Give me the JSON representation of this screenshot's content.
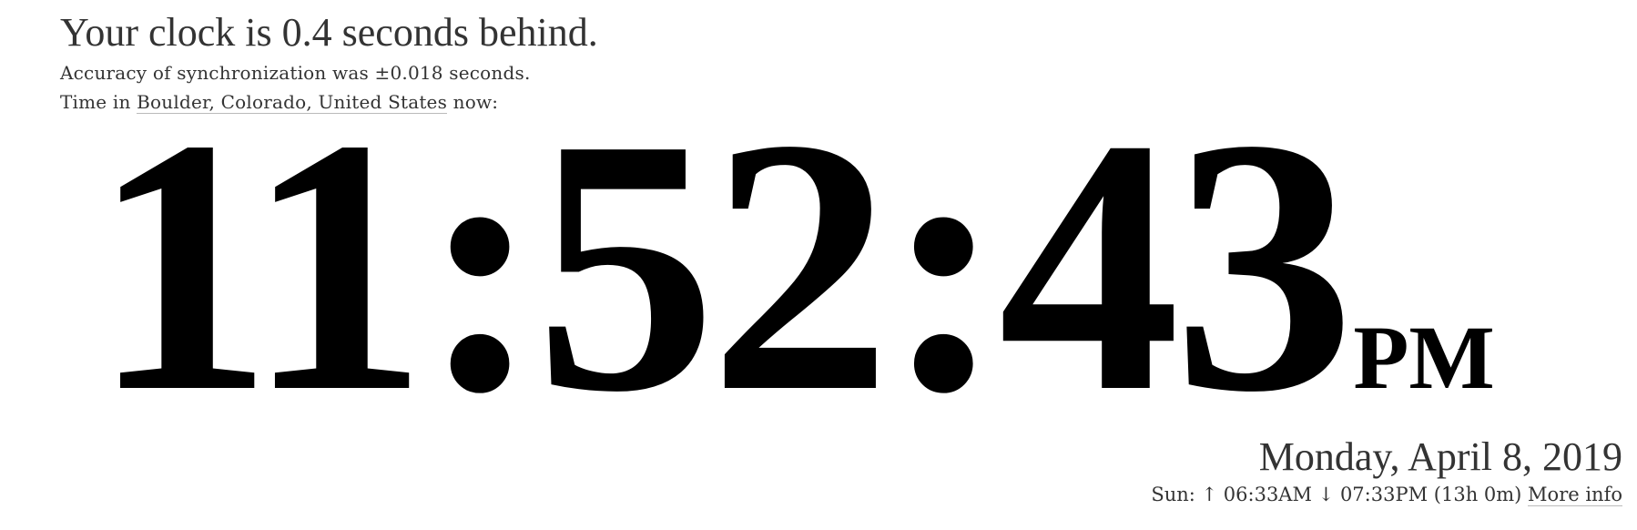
{
  "header": {
    "headline": "Your clock is 0.4 seconds behind.",
    "accuracy": "Accuracy of synchronization was ±0.018 seconds.",
    "time_in_prefix": "Time in ",
    "location": "Boulder, Colorado, United States",
    "time_in_suffix": " now:"
  },
  "clock": {
    "time": "11:52:43",
    "ampm": "PM"
  },
  "date": {
    "full_date": "Monday, April 8, 2019",
    "sun_prefix": "Sun: ",
    "sunrise_arrow": "↑",
    "sunrise": " 06:33AM ",
    "sunset_arrow": "↓",
    "sunset": " 07:33PM ",
    "day_length": "(13h 0m) ",
    "more_info": "More info"
  },
  "colors": {
    "text": "#333333",
    "clock": "#000000",
    "link_underline": "#bbbbbb",
    "background": "#ffffff"
  }
}
